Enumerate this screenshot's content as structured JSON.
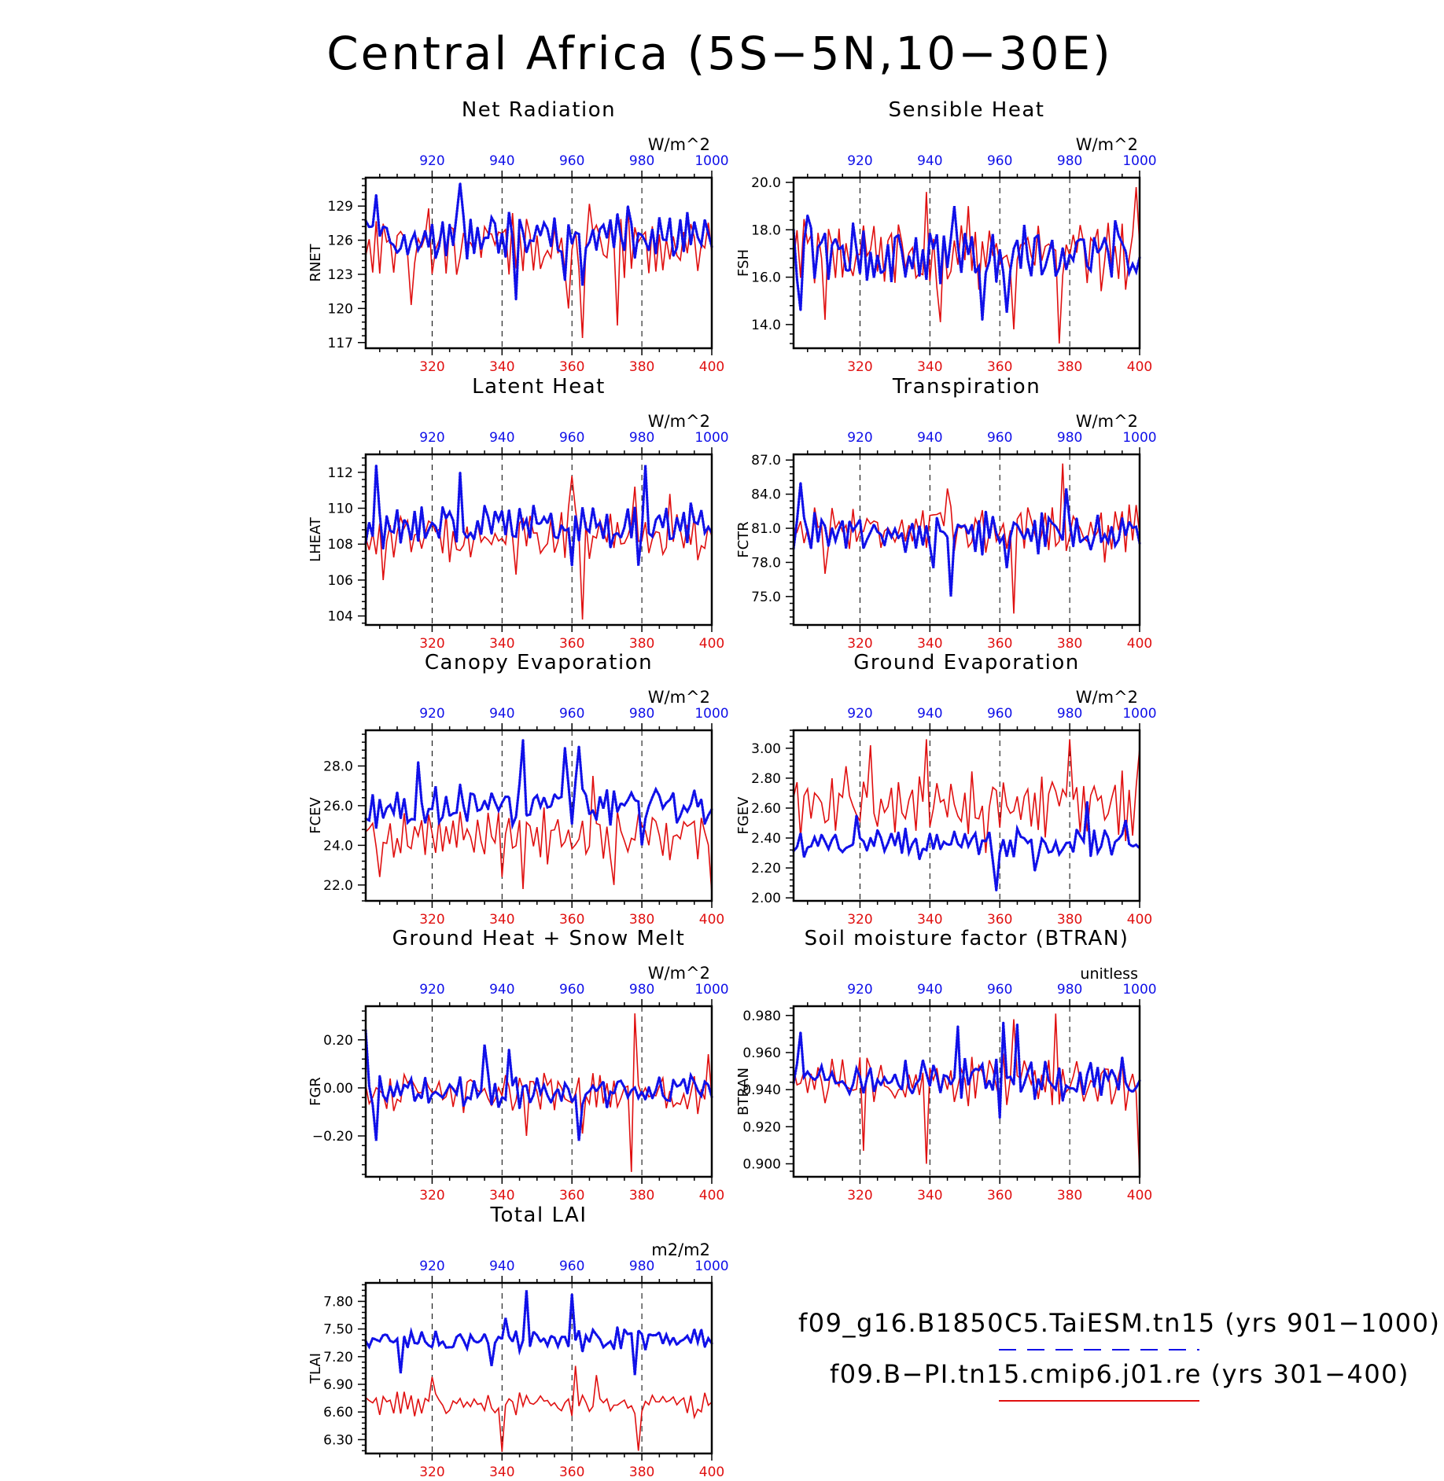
{
  "title": "Central Africa (5S−5N,10−30E)",
  "colors": {
    "red": "#e01010",
    "blue": "#1010e8",
    "axis": "#000000"
  },
  "legend": {
    "blue_label": "f09_g16.B1850C5.TaiESM.tn15 (yrs 901−1000)",
    "red_label": "f09.B−PI.tn15.cmip6.j01.re (yrs 301−400)"
  },
  "chart_data": [
    {
      "type": "line",
      "title": "Net Radiation",
      "ylabel": "RNET",
      "units": "W/m^2",
      "ylim": [
        116.5,
        131.5
      ],
      "yticks": [
        117,
        120,
        123,
        126,
        129
      ],
      "ytick_labels": [
        "117",
        "120",
        "123",
        "126",
        "129"
      ],
      "x_bottom": {
        "lim": [
          301,
          400
        ],
        "ticks": [
          320,
          340,
          360,
          380,
          400
        ]
      },
      "x_top": {
        "lim": [
          901,
          1000
        ],
        "ticks": [
          920,
          940,
          960,
          980,
          1000
        ]
      },
      "series": [
        {
          "color": "red",
          "style": "solid",
          "base": 125.5,
          "amp": 2.5,
          "spikes": [
            [
              314,
              120.3
            ],
            [
              363,
              117.4
            ],
            [
              359,
              120.0
            ],
            [
              373,
              118.5
            ],
            [
              376,
              129.0
            ],
            [
              365,
              129.2
            ],
            [
              319,
              128.8
            ]
          ]
        },
        {
          "color": "blue",
          "style": "dotted",
          "base": 126.3,
          "amp": 2.0,
          "spikes": [
            [
              928,
              131.0
            ],
            [
              904,
              130.0
            ],
            [
              944,
              120.8
            ],
            [
              963,
              122.0
            ],
            [
              958,
              122.5
            ],
            [
              976,
              129.0
            ]
          ]
        }
      ]
    },
    {
      "type": "line",
      "title": "Sensible Heat",
      "ylabel": "FSH",
      "units": "W/m^2",
      "ylim": [
        13.0,
        20.2
      ],
      "yticks": [
        14.0,
        16.0,
        18.0,
        20.0
      ],
      "ytick_labels": [
        "14.0",
        "16.0",
        "18.0",
        "20.0"
      ],
      "x_bottom": {
        "lim": [
          301,
          400
        ],
        "ticks": [
          320,
          340,
          360,
          380,
          400
        ]
      },
      "x_top": {
        "lim": [
          901,
          1000
        ],
        "ticks": [
          920,
          940,
          960,
          980,
          1000
        ]
      },
      "series": [
        {
          "color": "red",
          "style": "solid",
          "base": 17.0,
          "amp": 1.4,
          "spikes": [
            [
              377,
              13.2
            ],
            [
              399,
              19.8
            ],
            [
              339,
              19.6
            ],
            [
              343,
              14.1
            ],
            [
              364,
              13.8
            ],
            [
              310,
              14.2
            ],
            [
              351,
              19.0
            ]
          ]
        },
        {
          "color": "blue",
          "style": "dotted",
          "base": 17.0,
          "amp": 1.2,
          "spikes": [
            [
              903,
              14.6
            ],
            [
              947,
              19.0
            ],
            [
              955,
              14.2
            ],
            [
              962,
              14.5
            ],
            [
              905,
              18.6
            ],
            [
              993,
              18.4
            ]
          ]
        }
      ]
    },
    {
      "type": "line",
      "title": "Latent Heat",
      "ylabel": "LHEAT",
      "units": "W/m^2",
      "ylim": [
        103.5,
        113.0
      ],
      "yticks": [
        104,
        106,
        108,
        110,
        112
      ],
      "ytick_labels": [
        "104",
        "106",
        "108",
        "110",
        "112"
      ],
      "x_bottom": {
        "lim": [
          301,
          400
        ],
        "ticks": [
          320,
          340,
          360,
          380,
          400
        ]
      },
      "x_top": {
        "lim": [
          901,
          1000
        ],
        "ticks": [
          920,
          940,
          960,
          980,
          1000
        ]
      },
      "series": [
        {
          "color": "red",
          "style": "solid",
          "base": 108.5,
          "amp": 1.3,
          "spikes": [
            [
              363,
              103.8
            ],
            [
              360,
              111.8
            ],
            [
              378,
              111.2
            ],
            [
              306,
              106.0
            ],
            [
              344,
              106.3
            ],
            [
              388,
              110.8
            ]
          ]
        },
        {
          "color": "blue",
          "style": "dotted",
          "base": 109.0,
          "amp": 1.1,
          "spikes": [
            [
              904,
              112.4
            ],
            [
              981,
              112.4
            ],
            [
              928,
              112.0
            ],
            [
              960,
              106.8
            ],
            [
              979,
              106.8
            ]
          ]
        }
      ]
    },
    {
      "type": "line",
      "title": "Transpiration",
      "ylabel": "FCTR",
      "units": "W/m^2",
      "ylim": [
        72.5,
        87.5
      ],
      "yticks": [
        75.0,
        78.0,
        81.0,
        84.0,
        87.0
      ],
      "ytick_labels": [
        "75.0",
        "78.0",
        "81.0",
        "84.0",
        "87.0"
      ],
      "x_bottom": {
        "lim": [
          301,
          400
        ],
        "ticks": [
          320,
          340,
          360,
          380,
          400
        ]
      },
      "x_top": {
        "lim": [
          901,
          1000
        ],
        "ticks": [
          920,
          940,
          960,
          980,
          1000
        ]
      },
      "series": [
        {
          "color": "red",
          "style": "solid",
          "base": 81.0,
          "amp": 2.0,
          "spikes": [
            [
              364,
              73.5
            ],
            [
              378,
              86.7
            ],
            [
              345,
              84.5
            ],
            [
              310,
              77.0
            ],
            [
              390,
              78.0
            ]
          ]
        },
        {
          "color": "blue",
          "style": "dotted",
          "base": 80.5,
          "amp": 1.8,
          "spikes": [
            [
              946,
              75.0
            ],
            [
              903,
              85.0
            ],
            [
              941,
              77.5
            ],
            [
              962,
              77.5
            ],
            [
              979,
              84.5
            ]
          ]
        }
      ]
    },
    {
      "type": "line",
      "title": "Canopy Evaporation",
      "ylabel": "FCEV",
      "units": "W/m^2",
      "ylim": [
        21.2,
        29.8
      ],
      "yticks": [
        22.0,
        24.0,
        26.0,
        28.0
      ],
      "ytick_labels": [
        "22.0",
        "24.0",
        "26.0",
        "28.0"
      ],
      "x_bottom": {
        "lim": [
          301,
          400
        ],
        "ticks": [
          320,
          340,
          360,
          380,
          400
        ]
      },
      "x_top": {
        "lim": [
          901,
          1000
        ],
        "ticks": [
          920,
          940,
          960,
          980,
          1000
        ]
      },
      "series": [
        {
          "color": "red",
          "style": "solid",
          "base": 24.5,
          "amp": 1.2,
          "spikes": [
            [
              400,
              21.6
            ],
            [
              346,
              21.8
            ],
            [
              305,
              22.4
            ],
            [
              340,
              22.4
            ],
            [
              372,
              22.0
            ],
            [
              366,
              27.5
            ]
          ]
        },
        {
          "color": "blue",
          "style": "dotted",
          "base": 26.0,
          "amp": 1.1,
          "spikes": [
            [
              946,
              29.3
            ],
            [
              962,
              29.0
            ],
            [
              958,
              28.9
            ],
            [
              916,
              28.2
            ],
            [
              980,
              24.0
            ]
          ]
        }
      ]
    },
    {
      "type": "line",
      "title": "Ground Evaporation",
      "ylabel": "FGEV",
      "units": "W/m^2",
      "ylim": [
        1.98,
        3.12
      ],
      "yticks": [
        2.0,
        2.2,
        2.4,
        2.6,
        2.8,
        3.0
      ],
      "ytick_labels": [
        "2.00",
        "2.20",
        "2.40",
        "2.60",
        "2.80",
        "3.00"
      ],
      "x_bottom": {
        "lim": [
          301,
          400
        ],
        "ticks": [
          320,
          340,
          360,
          380,
          400
        ]
      },
      "x_top": {
        "lim": [
          901,
          1000
        ],
        "ticks": [
          920,
          940,
          960,
          980,
          1000
        ]
      },
      "series": [
        {
          "color": "red",
          "style": "solid",
          "base": 2.62,
          "amp": 0.2,
          "spikes": [
            [
              339,
              3.06
            ],
            [
              380,
              3.06
            ],
            [
              323,
              3.02
            ],
            [
              400,
              3.0
            ],
            [
              316,
              2.88
            ],
            [
              356,
              2.3
            ]
          ]
        },
        {
          "color": "blue",
          "style": "dotted",
          "base": 2.36,
          "amp": 0.1,
          "spikes": [
            [
              959,
              2.05
            ],
            [
              919,
              2.55
            ],
            [
              985,
              2.64
            ],
            [
              970,
              2.18
            ],
            [
              996,
              2.52
            ]
          ]
        }
      ]
    },
    {
      "type": "line",
      "title": "Ground Heat + Snow Melt",
      "ylabel": "FGR",
      "units": "W/m^2",
      "ylim": [
        -0.37,
        0.34
      ],
      "yticks": [
        -0.2,
        0.0,
        0.2
      ],
      "ytick_labels": [
        "−0.20",
        "0.00",
        "0.20"
      ],
      "x_bottom": {
        "lim": [
          301,
          400
        ],
        "ticks": [
          320,
          340,
          360,
          380,
          400
        ]
      },
      "x_top": {
        "lim": [
          901,
          1000
        ],
        "ticks": [
          920,
          940,
          960,
          980,
          1000
        ]
      },
      "series": [
        {
          "color": "red",
          "style": "solid",
          "base": -0.02,
          "amp": 0.08,
          "spikes": [
            [
              378,
              0.31
            ],
            [
              377,
              -0.35
            ],
            [
              363,
              -0.19
            ],
            [
              347,
              -0.2
            ],
            [
              399,
              0.14
            ]
          ]
        },
        {
          "color": "blue",
          "style": "dotted",
          "base": -0.01,
          "amp": 0.07,
          "spikes": [
            [
              901,
              0.24
            ],
            [
              904,
              -0.22
            ],
            [
              935,
              0.18
            ],
            [
              962,
              -0.22
            ],
            [
              942,
              0.16
            ]
          ]
        }
      ]
    },
    {
      "type": "line",
      "title": "Soil moisture factor (BTRAN)",
      "ylabel": "BTRAN",
      "units": "unitless",
      "ylim": [
        0.893,
        0.985
      ],
      "yticks": [
        0.9,
        0.92,
        0.94,
        0.96,
        0.98
      ],
      "ytick_labels": [
        "0.900",
        "0.920",
        "0.940",
        "0.960",
        "0.980"
      ],
      "x_bottom": {
        "lim": [
          301,
          400
        ],
        "ticks": [
          320,
          340,
          360,
          380,
          400
        ]
      },
      "x_top": {
        "lim": [
          901,
          1000
        ],
        "ticks": [
          920,
          940,
          960,
          980,
          1000
        ]
      },
      "series": [
        {
          "color": "red",
          "style": "solid",
          "base": 0.944,
          "amp": 0.014,
          "spikes": [
            [
              339,
              0.9
            ],
            [
              400,
              0.895
            ],
            [
              376,
              0.981
            ],
            [
              364,
              0.978
            ],
            [
              321,
              0.907
            ]
          ]
        },
        {
          "color": "blue",
          "style": "dotted",
          "base": 0.946,
          "amp": 0.011,
          "spikes": [
            [
              948,
              0.974
            ],
            [
              961,
              0.976
            ],
            [
              965,
              0.975
            ],
            [
              903,
              0.971
            ],
            [
              960,
              0.925
            ]
          ]
        }
      ]
    },
    {
      "type": "line",
      "title": "Total LAI",
      "ylabel": "TLAI",
      "units": "m2/m2",
      "ylim": [
        6.15,
        8.0
      ],
      "yticks": [
        6.3,
        6.6,
        6.9,
        7.2,
        7.5,
        7.8
      ],
      "ytick_labels": [
        "6.30",
        "6.60",
        "6.90",
        "7.20",
        "7.50",
        "7.80"
      ],
      "x_bottom": {
        "lim": [
          301,
          400
        ],
        "ticks": [
          320,
          340,
          360,
          380,
          400
        ]
      },
      "x_top": {
        "lim": [
          901,
          1000
        ],
        "ticks": [
          920,
          940,
          960,
          980,
          1000
        ]
      },
      "series": [
        {
          "color": "red",
          "style": "solid",
          "base": 6.68,
          "amp": 0.12,
          "spikes": [
            [
              340,
              6.17
            ],
            [
              379,
              6.18
            ],
            [
              361,
              7.1
            ],
            [
              367,
              7.0
            ],
            [
              320,
              6.98
            ]
          ]
        },
        {
          "color": "blue",
          "style": "dotted",
          "base": 7.38,
          "amp": 0.12,
          "spikes": [
            [
              947,
              7.92
            ],
            [
              960,
              7.88
            ],
            [
              941,
              7.62
            ],
            [
              911,
              7.02
            ],
            [
              937,
              7.1
            ],
            [
              978,
              7.0
            ]
          ]
        }
      ]
    }
  ]
}
